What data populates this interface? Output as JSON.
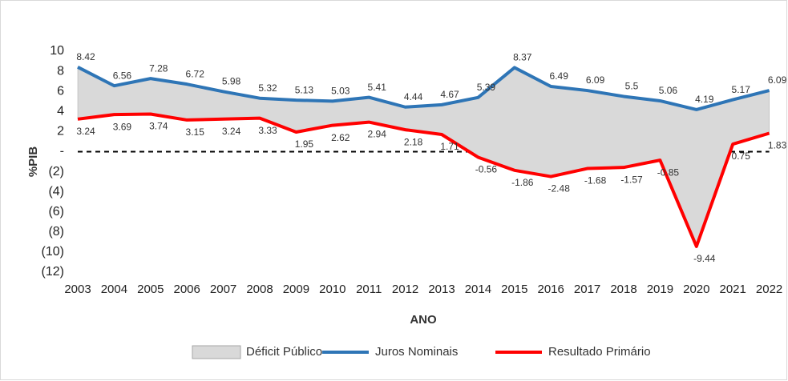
{
  "chart_data": {
    "type": "line",
    "x_label": "ANO",
    "y_label": "%PIB",
    "categories": [
      "2003",
      "2004",
      "2005",
      "2006",
      "2007",
      "2008",
      "2009",
      "2010",
      "2011",
      "2012",
      "2013",
      "2014",
      "2015",
      "2016",
      "2017",
      "2018",
      "2019",
      "2020",
      "2021",
      "2022"
    ],
    "area": {
      "name": "Déficit Público",
      "color": "#d9d9d9"
    },
    "series": [
      {
        "name": "Juros Nominais",
        "color": "#2e75b6",
        "values": [
          8.42,
          6.56,
          7.28,
          6.72,
          5.98,
          5.32,
          5.13,
          5.03,
          5.41,
          4.44,
          4.67,
          5.39,
          8.37,
          6.49,
          6.09,
          5.5,
          5.06,
          4.19,
          5.17,
          6.09
        ]
      },
      {
        "name": "Resultado Primário",
        "color": "#ff0000",
        "values": [
          3.24,
          3.69,
          3.74,
          3.15,
          3.24,
          3.33,
          1.95,
          2.62,
          2.94,
          2.18,
          1.71,
          -0.56,
          -1.86,
          -2.48,
          -1.68,
          -1.57,
          -0.85,
          -9.44,
          0.75,
          1.83
        ]
      }
    ],
    "ylim": [
      -12,
      10
    ],
    "yticks": [
      10,
      8,
      6,
      4,
      2,
      {
        "value": 0,
        "label": "-"
      },
      {
        "value": -2,
        "label": "(2)"
      },
      {
        "value": -4,
        "label": "(4)"
      },
      {
        "value": -6,
        "label": "(6)"
      },
      {
        "value": -8,
        "label": "(8)"
      },
      {
        "value": -10,
        "label": "(10)"
      },
      {
        "value": -12,
        "label": "(12)"
      }
    ],
    "zero_line": true
  }
}
